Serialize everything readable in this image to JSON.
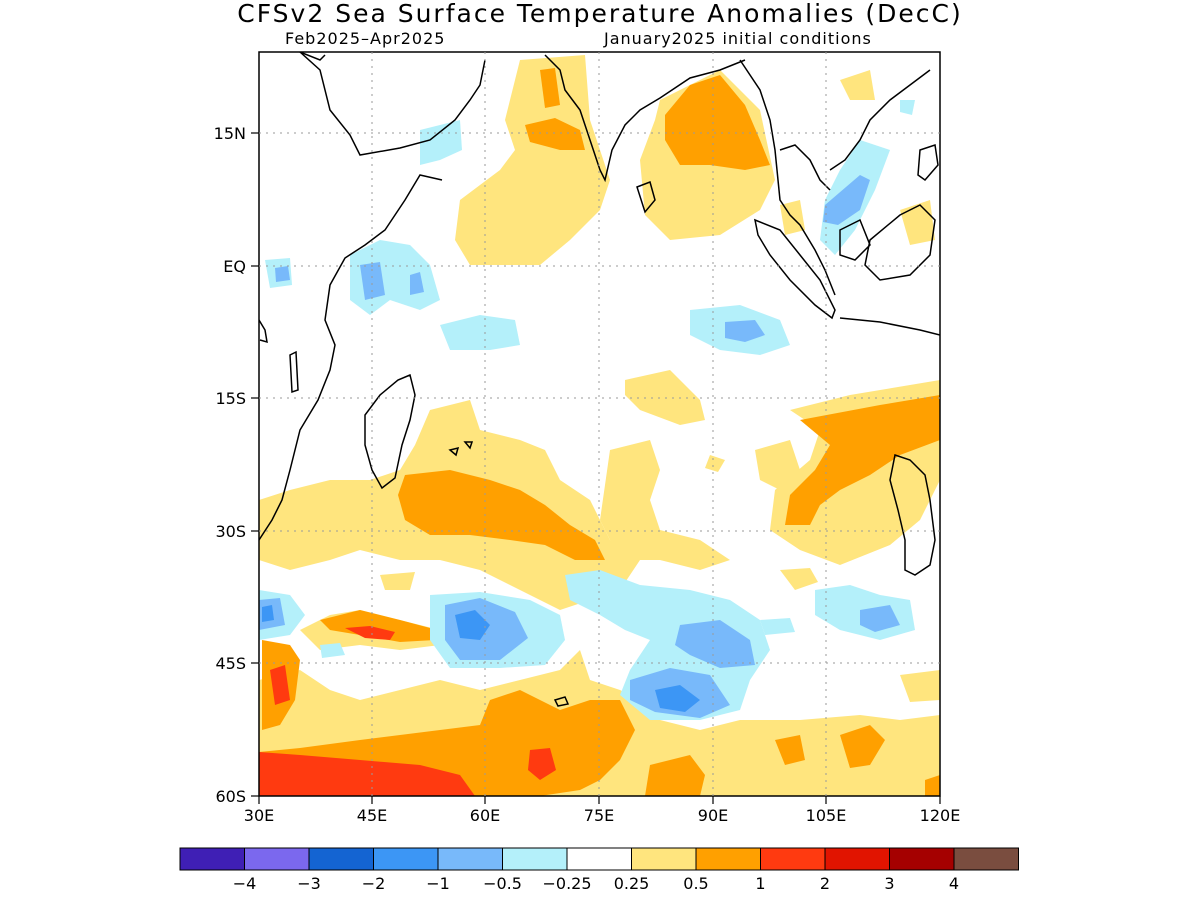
{
  "title": "CFSv2 Sea Surface Temperature Anomalies (DecC)",
  "subtitle_left": "Feb2025–Apr2025",
  "subtitle_right": "January2025 initial conditions",
  "map": {
    "lon_range": [
      30,
      120
    ],
    "lat_range": [
      -60,
      24
    ],
    "x_ticks": [
      "30E",
      "45E",
      "60E",
      "75E",
      "90E",
      "105E",
      "120E"
    ],
    "y_ticks": [
      "15N",
      "EQ",
      "15S",
      "30S",
      "45S",
      "60S"
    ],
    "gridlines": "dotted"
  },
  "colorbar": {
    "colors": [
      "#3f1fb5",
      "#7b68ee",
      "#1464d2",
      "#3c96f5",
      "#78b9fa",
      "#b4f0fa",
      "#ffffff",
      "#ffe57e",
      "#ffa000",
      "#ff3a10",
      "#e11400",
      "#a50000",
      "#7a4d3f"
    ],
    "labels": [
      "−4",
      "−3",
      "−2",
      "−1",
      "−0.5",
      "−0.25",
      "0.25",
      "0.5",
      "1",
      "2",
      "3",
      "4"
    ]
  }
}
